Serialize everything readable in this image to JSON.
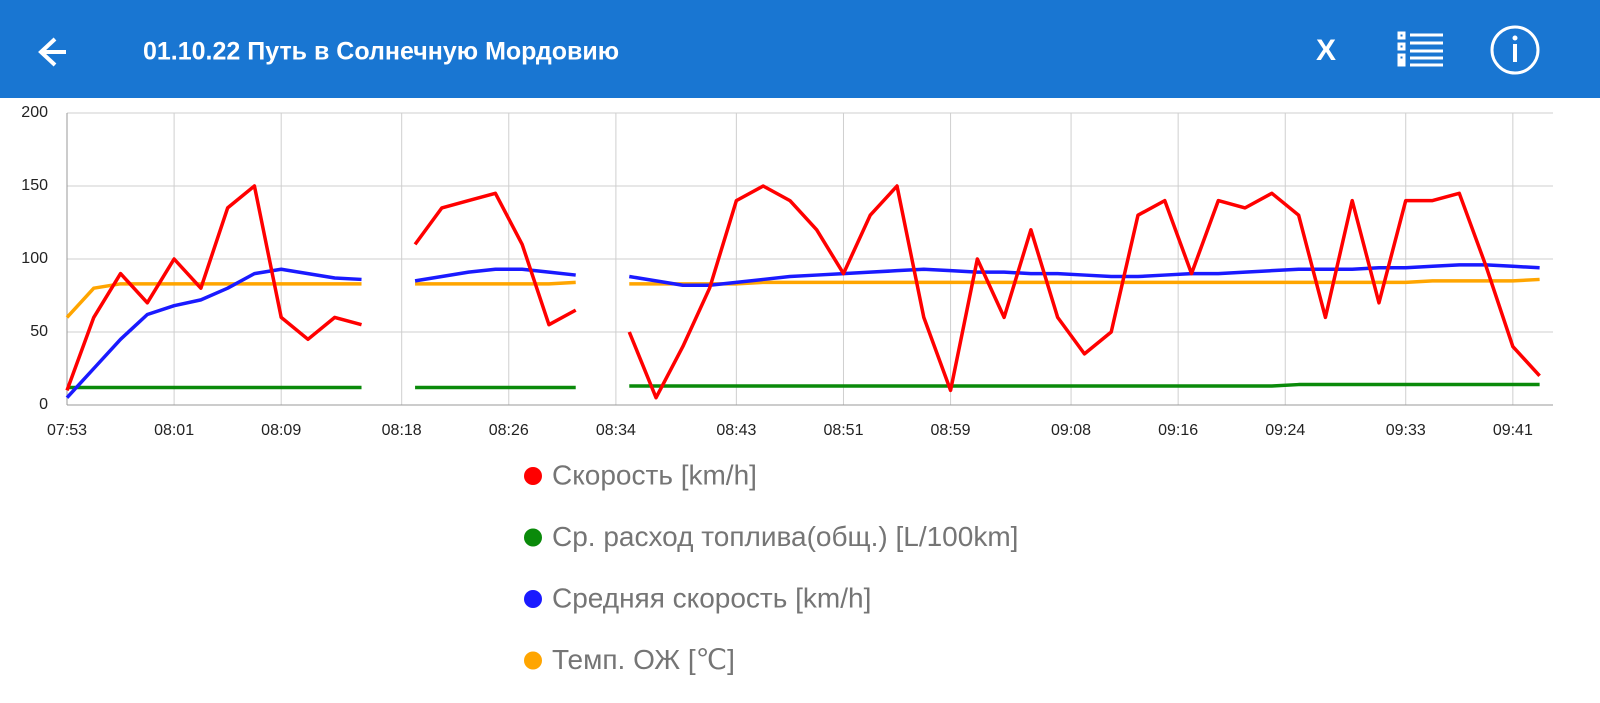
{
  "header": {
    "title": "01.10.22  Путь в Солнечную Мордовию",
    "close": "X"
  },
  "chart_data": {
    "type": "line",
    "x": [
      "07:53",
      "07:55",
      "07:57",
      "07:59",
      "08:01",
      "08:03",
      "08:05",
      "08:07",
      "08:09",
      "08:11",
      "08:13",
      "08:15",
      "08:17",
      "08:19",
      "08:21",
      "08:23",
      "08:25",
      "08:27",
      "08:29",
      "08:31",
      "08:33",
      "08:35",
      "08:37",
      "08:39",
      "08:41",
      "08:43",
      "08:45",
      "08:47",
      "08:49",
      "08:51",
      "08:53",
      "08:55",
      "08:57",
      "08:59",
      "09:01",
      "09:03",
      "09:05",
      "09:07",
      "09:09",
      "09:11",
      "09:13",
      "09:15",
      "09:17",
      "09:19",
      "09:21",
      "09:23",
      "09:25",
      "09:27",
      "09:29",
      "09:31",
      "09:33",
      "09:35",
      "09:37",
      "09:39",
      "09:41",
      "09:43"
    ],
    "series": [
      {
        "name": "Скорость [km/h]",
        "color": "#ff0000",
        "values": [
          10,
          60,
          90,
          70,
          100,
          80,
          135,
          150,
          60,
          45,
          60,
          55,
          null,
          110,
          135,
          140,
          145,
          110,
          55,
          65,
          null,
          50,
          5,
          40,
          80,
          140,
          150,
          140,
          120,
          90,
          130,
          150,
          60,
          10,
          100,
          60,
          120,
          60,
          35,
          50,
          130,
          140,
          90,
          140,
          135,
          145,
          130,
          60,
          140,
          70,
          140,
          140,
          145,
          95,
          40,
          20
        ]
      },
      {
        "name": "Ср. расход топлива(общ.) [L/100km]",
        "color": "#0a8a0a",
        "values": [
          12,
          12,
          12,
          12,
          12,
          12,
          12,
          12,
          12,
          12,
          12,
          12,
          null,
          12,
          12,
          12,
          12,
          12,
          12,
          12,
          null,
          13,
          13,
          13,
          13,
          13,
          13,
          13,
          13,
          13,
          13,
          13,
          13,
          13,
          13,
          13,
          13,
          13,
          13,
          13,
          13,
          13,
          13,
          13,
          13,
          13,
          14,
          14,
          14,
          14,
          14,
          14,
          14,
          14,
          14,
          14
        ]
      },
      {
        "name": "Средняя скорость [km/h]",
        "color": "#1a1aff",
        "values": [
          5,
          25,
          45,
          62,
          68,
          72,
          80,
          90,
          93,
          90,
          87,
          86,
          null,
          85,
          88,
          91,
          93,
          93,
          91,
          89,
          null,
          88,
          85,
          82,
          82,
          84,
          86,
          88,
          89,
          90,
          91,
          92,
          93,
          92,
          91,
          91,
          90,
          90,
          89,
          88,
          88,
          89,
          90,
          90,
          91,
          92,
          93,
          93,
          93,
          94,
          94,
          95,
          96,
          96,
          95,
          94
        ]
      },
      {
        "name": "Темп. ОЖ [℃]",
        "color": "#ffa500",
        "values": [
          60,
          80,
          83,
          83,
          83,
          83,
          83,
          83,
          83,
          83,
          83,
          83,
          null,
          83,
          83,
          83,
          83,
          83,
          83,
          84,
          null,
          83,
          83,
          83,
          83,
          83,
          84,
          84,
          84,
          84,
          84,
          84,
          84,
          84,
          84,
          84,
          84,
          84,
          84,
          84,
          84,
          84,
          84,
          84,
          84,
          84,
          84,
          84,
          84,
          84,
          84,
          85,
          85,
          85,
          85,
          86
        ]
      }
    ],
    "xlim": [
      "07:53",
      "09:44"
    ],
    "xticks": [
      "07:53",
      "08:01",
      "08:09",
      "08:18",
      "08:26",
      "08:34",
      "08:43",
      "08:51",
      "08:59",
      "09:08",
      "09:16",
      "09:24",
      "09:33",
      "09:41"
    ],
    "ylim": [
      0,
      200
    ],
    "yticks": [
      0,
      50,
      100,
      150,
      200
    ],
    "grid": true
  }
}
